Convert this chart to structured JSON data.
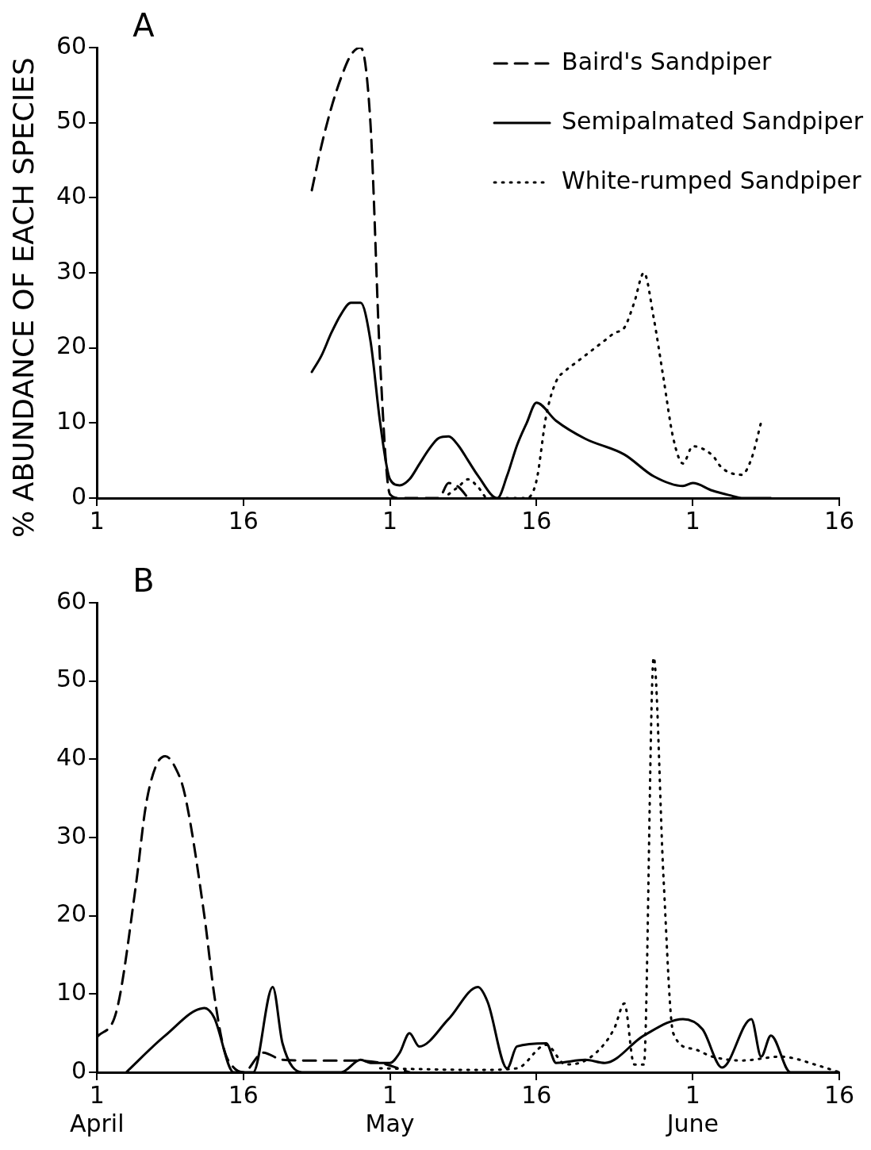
{
  "chart_data": [
    {
      "type": "line",
      "title": "A",
      "ylabel": "% ABUNDANCE OF EACH SPECIES",
      "legend": "top right",
      "xlim": [
        "--04-01",
        "--06-16"
      ],
      "xticks": [
        {
          "value": "--04-01",
          "label": "1"
        },
        {
          "value": "--04-16",
          "label": "16"
        },
        {
          "value": "--05-01",
          "label": "1"
        },
        {
          "value": "--05-16",
          "label": "16"
        },
        {
          "value": "--06-01",
          "label": "1"
        },
        {
          "value": "--06-16",
          "label": "16"
        }
      ],
      "ylim": [
        0,
        60
      ],
      "yticks": [
        0,
        10,
        20,
        30,
        40,
        50,
        60
      ],
      "series": [
        {
          "name": "Baird's Sandpiper",
          "color": "#000000",
          "line_style": "dashed",
          "x": [
            "--04-23",
            "--04-24",
            "--04-25",
            "--04-26",
            "--04-27",
            "--04-28",
            "--04-29",
            "--04-30",
            "--05-01",
            "--05-02",
            "--05-06",
            "--05-07",
            "--05-08",
            "--05-09"
          ],
          "values": [
            41,
            47,
            52,
            56,
            59,
            60,
            50,
            18,
            0.5,
            0,
            0,
            2,
            1.5,
            0
          ]
        },
        {
          "name": "Semipalmated Sandpiper",
          "color": "#000000",
          "line_style": "solid",
          "x": [
            "--04-23",
            "--04-24",
            "--04-25",
            "--04-26",
            "--04-27",
            "--04-28",
            "--04-29",
            "--04-30",
            "--05-01",
            "--05-02",
            "--05-03",
            "--05-04",
            "--05-05",
            "--05-06",
            "--05-07",
            "--05-08",
            "--05-09",
            "--05-10",
            "--05-12",
            "--05-13",
            "--05-14",
            "--05-15",
            "--05-16",
            "--05-18",
            "--05-21",
            "--05-25",
            "--05-28",
            "--05-31",
            "--06-01",
            "--06-03",
            "--06-05",
            "--06-06",
            "--06-09"
          ],
          "values": [
            16.8,
            19,
            22,
            24.5,
            26,
            26,
            21,
            10,
            2.5,
            1.7,
            2.5,
            4.5,
            6.5,
            8,
            8.2,
            7,
            5,
            3,
            0,
            3,
            7,
            10,
            12.7,
            10.3,
            7.9,
            5.8,
            2.9,
            1.6,
            2,
            1,
            0.3,
            0,
            0
          ]
        },
        {
          "name": "White-rumped Sandpiper",
          "color": "#000000",
          "line_style": "dotted",
          "x": [
            "--05-07",
            "--05-08",
            "--05-09",
            "--05-10",
            "--05-11",
            "--05-15",
            "--05-16",
            "--05-17",
            "--05-18",
            "--05-19",
            "--05-20",
            "--05-21",
            "--05-22",
            "--05-23",
            "--05-24",
            "--05-25",
            "--05-26",
            "--05-27",
            "--05-28",
            "--05-29",
            "--05-30",
            "--05-31",
            "--06-01",
            "--06-03",
            "--06-04",
            "--06-06",
            "--06-07",
            "--06-08"
          ],
          "values": [
            0.5,
            1.5,
            2.5,
            1.5,
            0,
            0,
            2.3,
            11,
            15.5,
            17,
            18,
            19,
            20,
            21,
            22,
            22.7,
            26,
            30,
            24,
            16,
            8,
            4.6,
            6.9,
            5.7,
            4,
            3.1,
            5.2,
            10.1
          ]
        }
      ]
    },
    {
      "type": "line",
      "title": "B",
      "xlim": [
        "--04-01",
        "--06-16"
      ],
      "xticks": [
        {
          "value": "--04-01",
          "label": "1\nApril"
        },
        {
          "value": "--04-16",
          "label": "16"
        },
        {
          "value": "--05-01",
          "label": "1\nMay"
        },
        {
          "value": "--05-16",
          "label": "16"
        },
        {
          "value": "--06-01",
          "label": "1\nJune"
        },
        {
          "value": "--06-16",
          "label": "16"
        }
      ],
      "ylim": [
        0,
        60
      ],
      "yticks": [
        0,
        10,
        20,
        30,
        40,
        50,
        60
      ],
      "series": [
        {
          "color": "#000000",
          "line_style": "dashed",
          "x": [
            "--04-01",
            "--04-03",
            "--04-05",
            "--04-06",
            "--04-07",
            "--04-08",
            "--04-09",
            "--04-10",
            "--04-12",
            "--04-13",
            "--04-14",
            "--04-15",
            "--04-16",
            "--04-18",
            "--04-20",
            "--04-23",
            "--04-27",
            "--04-30",
            "--05-03"
          ],
          "values": [
            4.5,
            7.8,
            24,
            34,
            39,
            40.4,
            39,
            35.5,
            20,
            10,
            3,
            0.6,
            0,
            2.5,
            1.6,
            1.5,
            1.5,
            1.2,
            0
          ]
        },
        {
          "color": "#000000",
          "line_style": "solid",
          "x": [
            "--04-04",
            "--04-08",
            "--04-12",
            "--04-13",
            "--04-15",
            "--04-17",
            "--04-19",
            "--04-20",
            "--04-22",
            "--04-26",
            "--04-28",
            "--04-29",
            "--05-01",
            "--05-02",
            "--05-03",
            "--05-04",
            "--05-07",
            "--05-10",
            "--05-11",
            "--05-13",
            "--05-14",
            "--05-17",
            "--05-18",
            "--05-21",
            "--05-23",
            "--05-27",
            "--05-31",
            "--06-02",
            "--06-04",
            "--06-07",
            "--06-08",
            "--06-09",
            "--06-11",
            "--06-16"
          ],
          "values": [
            0,
            4.7,
            8.2,
            7,
            0,
            0,
            10.9,
            3.7,
            0,
            0,
            1.6,
            1.2,
            1.2,
            2.5,
            5,
            3.3,
            6.8,
            10.9,
            9,
            0.5,
            3.3,
            3.7,
            1.2,
            1.6,
            1.2,
            4.7,
            6.8,
            5.5,
            0.6,
            6.8,
            2,
            4.7,
            0,
            0
          ]
        },
        {
          "color": "#000000",
          "line_style": "dotted",
          "x": [
            "--04-30",
            "--05-10",
            "--05-14",
            "--05-17",
            "--05-19",
            "--05-21",
            "--05-23",
            "--05-24",
            "--05-25",
            "--05-26",
            "--05-27",
            "--05-28",
            "--05-29",
            "--05-30",
            "--06-01",
            "--06-03",
            "--06-06",
            "--06-10",
            "--06-14",
            "--06-16"
          ],
          "values": [
            0.5,
            0.3,
            0.5,
            3.5,
            1,
            1.5,
            3.7,
            5.7,
            8.8,
            1,
            1,
            53,
            25,
            5,
            3,
            2,
            1.5,
            2,
            0.8,
            0
          ]
        }
      ]
    }
  ]
}
